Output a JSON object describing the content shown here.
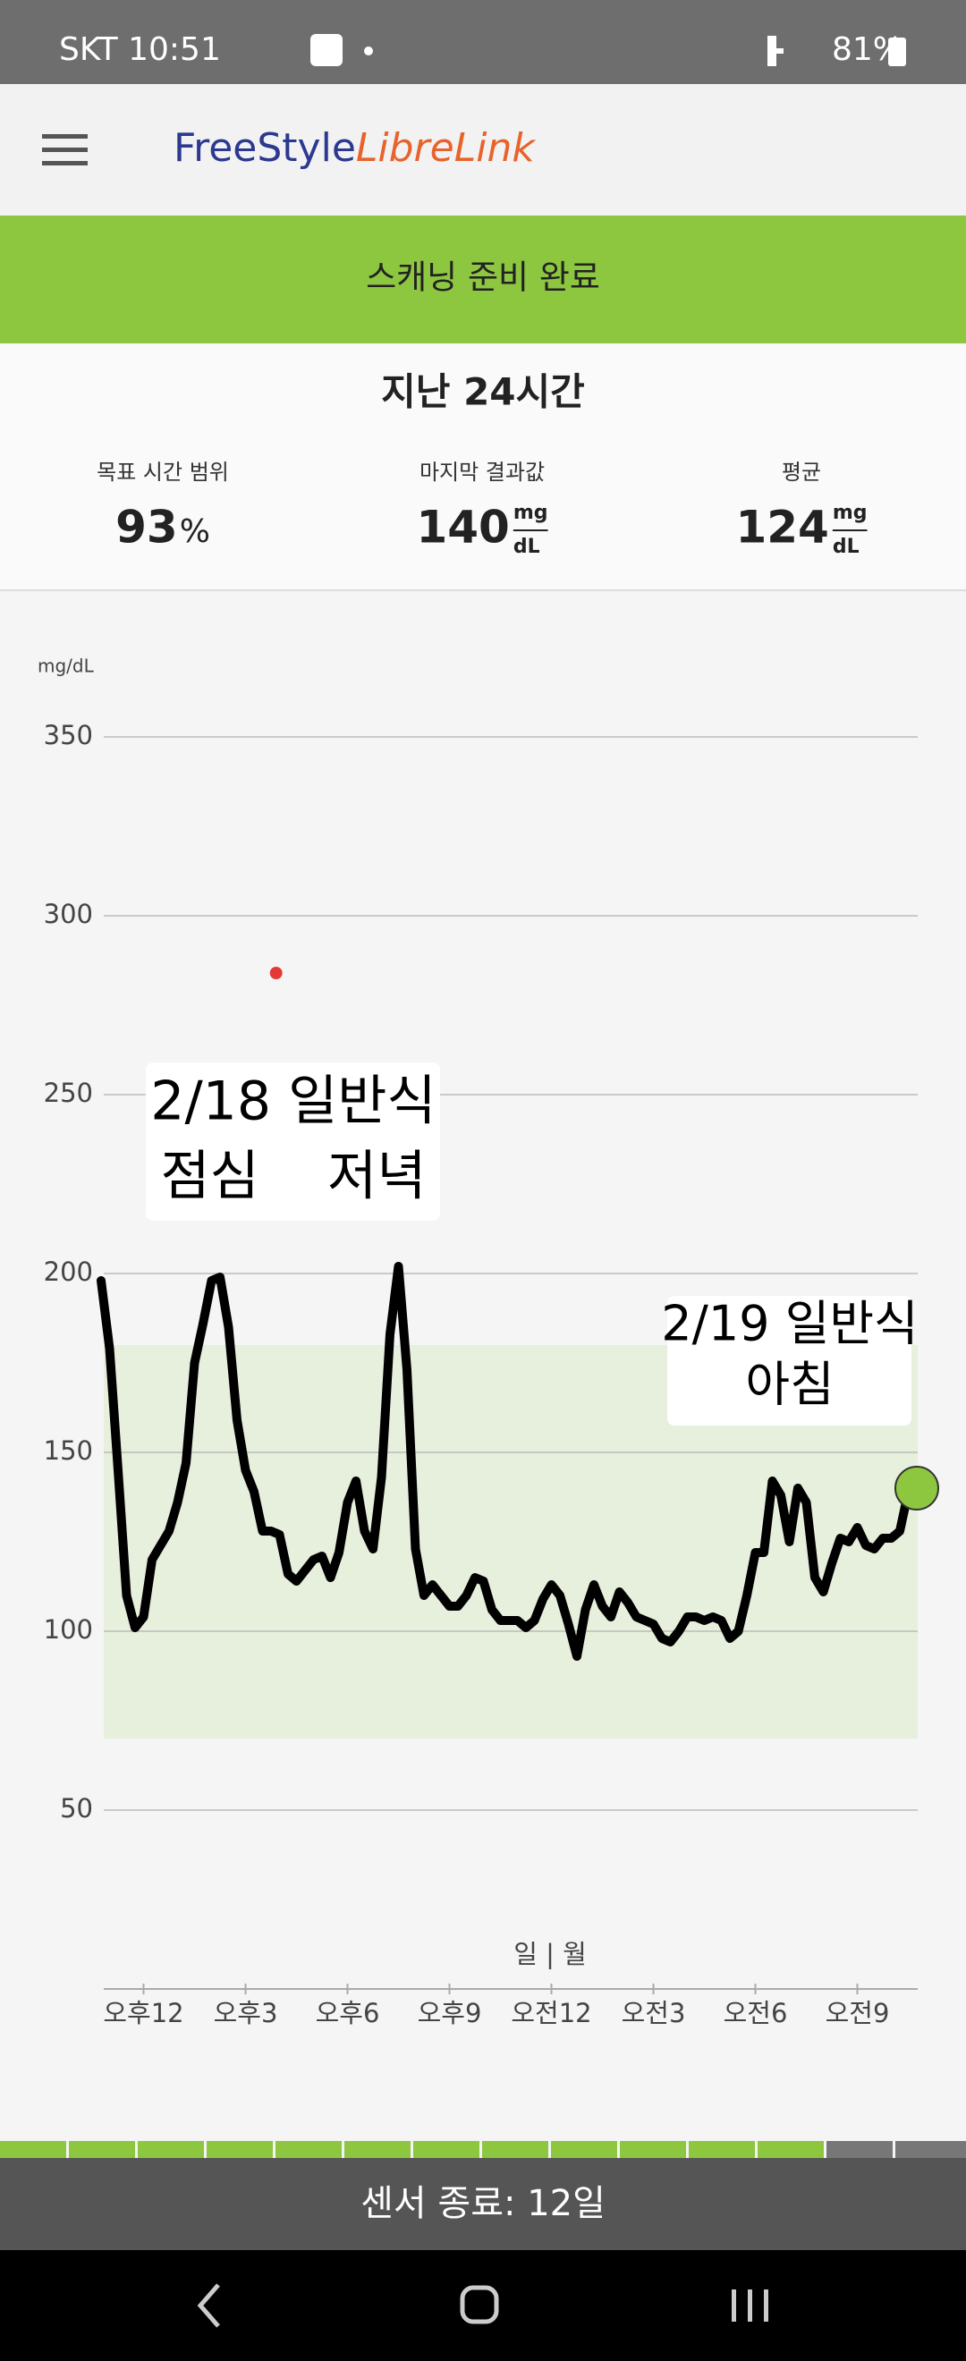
{
  "status_bar": {
    "left": "SKT 10:51",
    "battery": "81%"
  },
  "header": {
    "logo_part1": "FreeStyle",
    "logo_part2": "LibreLink"
  },
  "banner": "스캐닝 준비 완료",
  "summary": {
    "title": "지난 24시간",
    "stats": [
      {
        "label": "목표 시간 범위",
        "value": 93,
        "unit": "%"
      },
      {
        "label": "마지막 결과값",
        "value": 140,
        "unit_top": "mg",
        "unit_bottom": "dL"
      },
      {
        "label": "평균",
        "value": 124,
        "unit_top": "mg",
        "unit_bottom": "dL"
      }
    ]
  },
  "chart_data": {
    "type": "line",
    "y_label": "mg/dL",
    "x_label": "일 | 월",
    "xlim": [
      10.75,
      34.75
    ],
    "ylim": [
      0,
      350
    ],
    "yticks": [
      50,
      100,
      150,
      200,
      250,
      300,
      350
    ],
    "xticks": [
      {
        "value": 12,
        "label": "오후12"
      },
      {
        "value": 15,
        "label": "오후3"
      },
      {
        "value": 18,
        "label": "오후6"
      },
      {
        "value": 21,
        "label": "오후9"
      },
      {
        "value": 24,
        "label": "오전12"
      },
      {
        "value": 27,
        "label": "오전3"
      },
      {
        "value": 30,
        "label": "오전6"
      },
      {
        "value": 33,
        "label": "오전9"
      }
    ],
    "grid": true,
    "target_range": [
      70,
      180
    ],
    "target_color": "#e7f0dc",
    "x": [
      10.75,
      11,
      11.25,
      11.5,
      11.75,
      12,
      12.25,
      12.5,
      12.75,
      13,
      13.25,
      13.5,
      13.75,
      14,
      14.25,
      14.5,
      14.75,
      15,
      15.25,
      15.5,
      15.75,
      16,
      16.25,
      16.5,
      16.75,
      17,
      17.25,
      17.5,
      17.75,
      18,
      18.25,
      18.5,
      18.75,
      19,
      19.25,
      19.5,
      19.75,
      20,
      20.25,
      20.5,
      20.75,
      21,
      21.25,
      21.5,
      21.75,
      22,
      22.25,
      22.5,
      22.75,
      23,
      23.25,
      23.5,
      23.75,
      24,
      24.25,
      24.5,
      24.75,
      25,
      25.25,
      25.5,
      25.75,
      26,
      26.25,
      26.5,
      26.75,
      27,
      27.25,
      27.5,
      27.75,
      28,
      28.25,
      28.5,
      28.75,
      29,
      29.25,
      29.5,
      29.75,
      30,
      30.25,
      30.5,
      30.75,
      31,
      31.25,
      31.5,
      31.75,
      32,
      32.25,
      32.5,
      32.75,
      33,
      33.25,
      33.5,
      33.75,
      34,
      34.25,
      34.5,
      34.75
    ],
    "series": [
      {
        "color": "#000000",
        "current_color": "#8dc63f",
        "values": [
          198,
          179,
          145,
          110,
          101,
          104,
          120,
          124,
          128,
          136,
          147,
          175,
          186,
          198,
          199,
          185,
          159,
          145,
          139,
          128,
          128,
          127,
          116,
          114,
          117,
          120,
          121,
          115,
          122,
          136,
          142,
          128,
          123,
          143,
          183,
          202,
          173,
          123,
          110,
          113,
          110,
          107,
          107,
          110,
          115,
          114,
          106,
          103,
          103,
          103,
          101,
          103,
          109,
          113,
          110,
          102,
          93,
          106,
          113,
          107,
          104,
          111,
          108,
          104,
          103,
          102,
          98,
          97,
          100,
          104,
          104,
          103,
          104,
          103,
          98,
          100,
          110,
          122,
          122,
          142,
          138,
          125,
          140,
          136,
          115,
          111,
          119,
          126,
          125,
          129,
          124,
          123,
          126,
          126,
          128,
          139,
          140
        ]
      }
    ],
    "markers": [
      {
        "x": 15.9,
        "value": 284,
        "color": "#e53935"
      }
    ],
    "annotations": [
      {
        "lines": [
          "2/18 일반식",
          "점심    저녁"
        ]
      },
      {
        "lines": [
          "2/19 일반식",
          "아침"
        ]
      }
    ]
  },
  "footer": "센서 종료: 12일"
}
